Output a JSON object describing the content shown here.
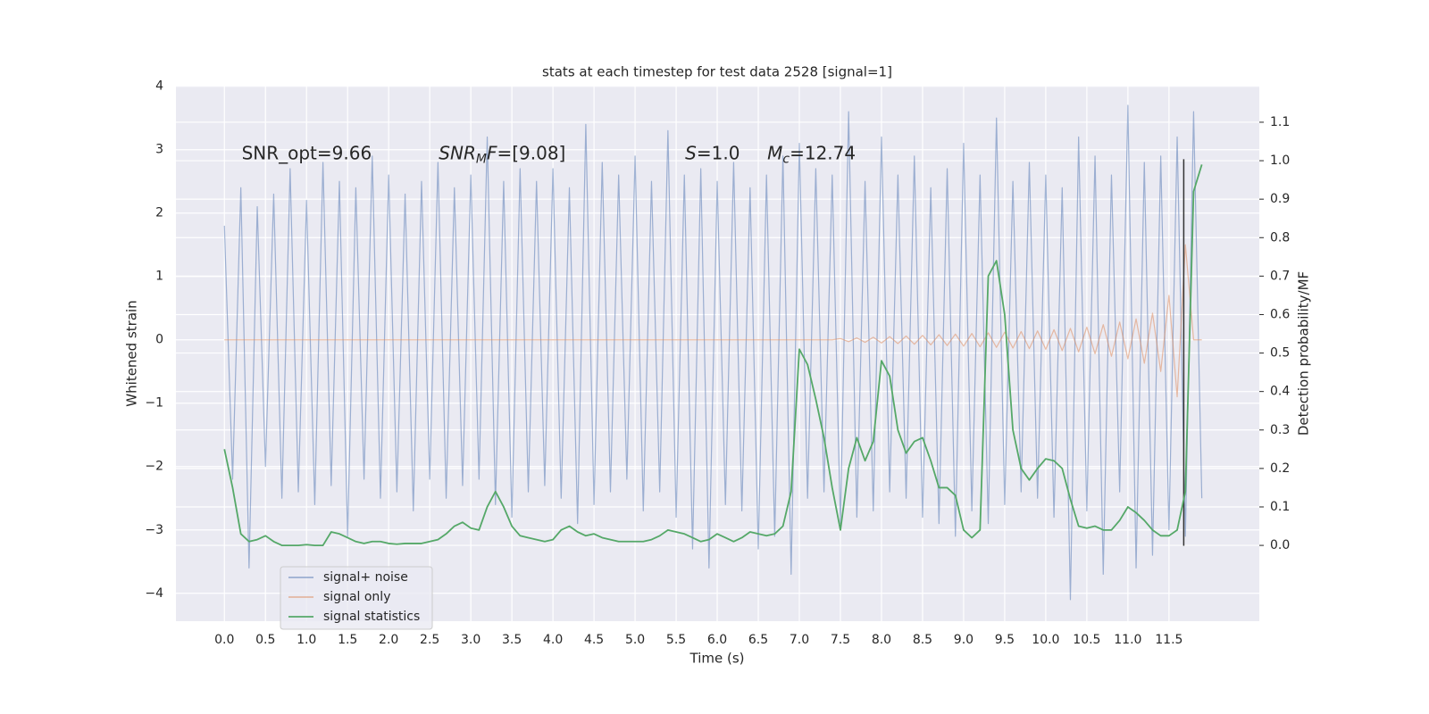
{
  "chart_data": {
    "type": "line",
    "title": "stats at each timestep for test data 2528 [signal=1]",
    "xlabel": "Time (s)",
    "ylabel": "Whitened strain",
    "y2label": "Detection probability/MF",
    "grid": true,
    "background": "#eaeaf2",
    "legend": "lower left",
    "xlim": [
      -0.59,
      12.6
    ],
    "ylim": [
      -4.44,
      4.01
    ],
    "y2lim": [
      -0.197,
      1.195
    ],
    "xticks": [
      {
        "value": 0,
        "label": "0.0"
      },
      0.5,
      {
        "value": 1,
        "label": "1.0"
      },
      1.5,
      {
        "value": 2,
        "label": "2.0"
      },
      2.5,
      {
        "value": 3,
        "label": "3.0"
      },
      3.5,
      {
        "value": 4,
        "label": "4.0"
      },
      4.5,
      {
        "value": 5,
        "label": "5.0"
      },
      5.5,
      {
        "value": 6,
        "label": "6.0"
      },
      6.5,
      {
        "value": 7,
        "label": "7.0"
      },
      7.5,
      {
        "value": 8,
        "label": "8.0"
      },
      8.5,
      {
        "value": 9,
        "label": "9.0"
      },
      9.5,
      {
        "value": 10,
        "label": "10.0"
      },
      10.5,
      {
        "value": 11,
        "label": "11.0"
      },
      11.5
    ],
    "yticks": [
      {
        "value": -4,
        "label": "−4"
      },
      {
        "value": -3,
        "label": "−3"
      },
      {
        "value": -2,
        "label": "−2"
      },
      {
        "value": -1,
        "label": "−1"
      },
      0,
      1,
      2,
      3,
      4
    ],
    "y2ticks": [
      {
        "value": 0,
        "label": "0.0"
      },
      0.1,
      0.2,
      0.3,
      0.4,
      0.5,
      0.6,
      0.7,
      0.8,
      0.9,
      {
        "value": 1,
        "label": "1.0"
      },
      1.1
    ],
    "x": [
      0,
      0.1,
      0.2,
      0.3,
      0.4,
      0.5,
      0.6,
      0.7,
      0.8,
      0.9,
      1.0,
      1.1,
      1.2,
      1.3,
      1.4,
      1.5,
      1.6,
      1.7,
      1.8,
      1.9,
      2.0,
      2.1,
      2.2,
      2.3,
      2.4,
      2.5,
      2.6,
      2.7,
      2.8,
      2.9,
      3.0,
      3.1,
      3.2,
      3.3,
      3.4,
      3.5,
      3.6,
      3.7,
      3.8,
      3.9,
      4.0,
      4.1,
      4.2,
      4.3,
      4.4,
      4.5,
      4.6,
      4.7,
      4.8,
      4.9,
      5.0,
      5.1,
      5.2,
      5.3,
      5.4,
      5.5,
      5.6,
      5.7,
      5.8,
      5.9,
      6.0,
      6.1,
      6.2,
      6.3,
      6.4,
      6.5,
      6.6,
      6.7,
      6.8,
      6.9,
      7.0,
      7.1,
      7.2,
      7.3,
      7.4,
      7.5,
      7.6,
      7.7,
      7.8,
      7.9,
      8.0,
      8.1,
      8.2,
      8.3,
      8.4,
      8.5,
      8.6,
      8.7,
      8.8,
      8.9,
      9.0,
      9.1,
      9.2,
      9.3,
      9.4,
      9.5,
      9.6,
      9.7,
      9.8,
      9.9,
      10.0,
      10.1,
      10.2,
      10.3,
      10.4,
      10.5,
      10.6,
      10.7,
      10.8,
      10.9,
      11.0,
      11.1,
      11.2,
      11.3,
      11.4,
      11.5,
      11.6,
      11.7,
      11.8,
      11.9
    ],
    "series": [
      {
        "name": "signal+ noise",
        "color": "#4c72b0",
        "alpha": 0.5,
        "values": [
          1.8,
          -2.2,
          2.4,
          -3.6,
          2.1,
          -2.0,
          2.3,
          -2.5,
          2.7,
          -2.4,
          2.2,
          -2.6,
          2.8,
          -2.3,
          2.5,
          -3.1,
          2.4,
          -2.2,
          2.9,
          -2.5,
          2.6,
          -2.4,
          2.3,
          -2.7,
          2.5,
          -2.2,
          2.8,
          -2.5,
          2.4,
          -2.3,
          2.6,
          -2.2,
          3.2,
          -2.6,
          2.5,
          -2.8,
          2.7,
          -2.4,
          2.5,
          -2.3,
          2.7,
          -2.5,
          2.4,
          -2.9,
          3.4,
          -2.6,
          2.8,
          -2.4,
          2.6,
          -2.2,
          2.9,
          -2.7,
          2.5,
          -2.4,
          3.3,
          -2.8,
          2.6,
          -3.3,
          2.7,
          -3.6,
          2.5,
          -2.6,
          2.8,
          -2.7,
          2.4,
          -3.3,
          2.6,
          -3.1,
          2.9,
          -3.7,
          3.1,
          -2.5,
          2.7,
          -2.4,
          2.6,
          -2.9,
          3.6,
          -2.8,
          2.5,
          -2.7,
          3.2,
          -2.4,
          2.6,
          -2.5,
          2.9,
          -2.8,
          2.4,
          -2.9,
          2.7,
          -3.1,
          3.1,
          -2.7,
          2.6,
          -2.9,
          3.5,
          -2.6,
          2.5,
          -2.4,
          2.8,
          -2.5,
          2.6,
          -2.8,
          2.4,
          -4.1,
          3.2,
          -2.7,
          2.9,
          -3.7,
          2.6,
          -2.4,
          3.7,
          -3.6,
          2.8,
          -3.4,
          2.9,
          -3.0,
          3.2,
          -3.1,
          3.6,
          -2.5
        ]
      },
      {
        "name": "signal only",
        "color": "#dd8452",
        "alpha": 0.5,
        "values": [
          0,
          0,
          0,
          0,
          0,
          0,
          0,
          0,
          0,
          0,
          0,
          0,
          0,
          0,
          0,
          0,
          0,
          0,
          0,
          0,
          0,
          0,
          0,
          0,
          0,
          0,
          0,
          0,
          0,
          0,
          0,
          0,
          0,
          0,
          0,
          0,
          0,
          0,
          0,
          0,
          0,
          0,
          0,
          0,
          0,
          0,
          0,
          0,
          0,
          0,
          0,
          0,
          0,
          0,
          0,
          0,
          0,
          0,
          0,
          0,
          0,
          0,
          0,
          0,
          0,
          0,
          0,
          0,
          0,
          0,
          0,
          0,
          0,
          0,
          0,
          0.02,
          -0.03,
          0.03,
          -0.04,
          0.04,
          -0.05,
          0.05,
          -0.06,
          0.06,
          -0.07,
          0.07,
          -0.08,
          0.08,
          -0.09,
          0.09,
          -0.1,
          0.1,
          -0.11,
          0.11,
          -0.12,
          0.12,
          -0.13,
          0.13,
          -0.14,
          0.14,
          -0.15,
          0.16,
          -0.17,
          0.18,
          -0.19,
          0.2,
          -0.22,
          0.24,
          -0.26,
          0.28,
          -0.3,
          0.33,
          -0.37,
          0.42,
          -0.5,
          0.7,
          -0.9,
          1.5,
          0,
          0
        ]
      },
      {
        "name": "signal statistics",
        "color": "#55a868",
        "alpha": 1,
        "axis": "y2",
        "values": [
          0.25,
          0.15,
          0.03,
          0.01,
          0.015,
          0.025,
          0.01,
          0.0,
          0.0,
          0.0,
          0.002,
          0.0,
          0.0,
          0.035,
          0.03,
          0.02,
          0.01,
          0.005,
          0.01,
          0.01,
          0.005,
          0.003,
          0.005,
          0.005,
          0.005,
          0.01,
          0.015,
          0.03,
          0.05,
          0.06,
          0.045,
          0.04,
          0.1,
          0.14,
          0.1,
          0.05,
          0.025,
          0.02,
          0.015,
          0.01,
          0.015,
          0.04,
          0.05,
          0.035,
          0.025,
          0.03,
          0.02,
          0.015,
          0.01,
          0.01,
          0.01,
          0.01,
          0.015,
          0.025,
          0.04,
          0.035,
          0.03,
          0.02,
          0.01,
          0.015,
          0.03,
          0.02,
          0.01,
          0.02,
          0.035,
          0.03,
          0.025,
          0.03,
          0.05,
          0.14,
          0.51,
          0.47,
          0.38,
          0.28,
          0.15,
          0.04,
          0.2,
          0.28,
          0.22,
          0.27,
          0.48,
          0.44,
          0.3,
          0.24,
          0.27,
          0.28,
          0.22,
          0.15,
          0.15,
          0.13,
          0.04,
          0.02,
          0.04,
          0.7,
          0.74,
          0.6,
          0.3,
          0.2,
          0.17,
          0.2,
          0.225,
          0.22,
          0.2,
          0.12,
          0.05,
          0.045,
          0.05,
          0.04,
          0.04,
          0.065,
          0.1,
          0.085,
          0.065,
          0.04,
          0.025,
          0.025,
          0.04,
          0.14,
          0.92,
          0.99
        ]
      }
    ],
    "vline": {
      "x": 11.68,
      "ymin": -3.25,
      "ymax": 2.85,
      "color": "#333333"
    },
    "annotations": [
      {
        "x": 0.21,
        "y": 2.93,
        "parts": [
          {
            "text": "SNR_opt=9.66",
            "style": "normal"
          }
        ]
      },
      {
        "x": 2.61,
        "y": 2.93,
        "parts": [
          {
            "text": "SNR",
            "style": "italic"
          },
          {
            "text": "M",
            "style": "sub"
          },
          {
            "text": "F",
            "style": "italic"
          },
          {
            "text": "=[9.08]",
            "style": "normal"
          }
        ]
      },
      {
        "x": 5.61,
        "y": 2.93,
        "parts": [
          {
            "text": "S",
            "style": "italic"
          },
          {
            "text": "=1.0",
            "style": "normal"
          }
        ]
      },
      {
        "x": 6.61,
        "y": 2.93,
        "parts": [
          {
            "text": "M",
            "style": "italic"
          },
          {
            "text": "c",
            "style": "sub"
          },
          {
            "text": "=12.74",
            "style": "normal"
          }
        ]
      }
    ]
  }
}
